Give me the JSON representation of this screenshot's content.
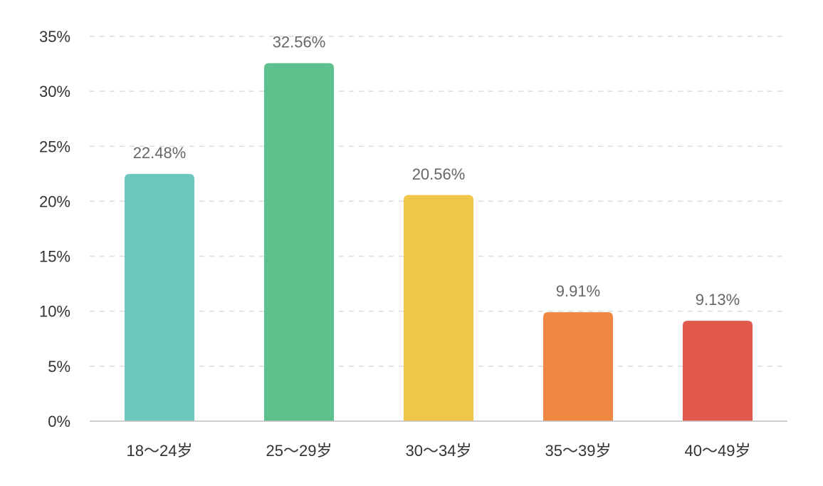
{
  "chart_data": {
    "type": "bar",
    "title": "",
    "xlabel": "",
    "ylabel": "",
    "categories": [
      "18～24岁",
      "25～29岁",
      "30～34岁",
      "35～39岁",
      "40～49岁"
    ],
    "values": [
      22.48,
      32.56,
      20.56,
      9.91,
      9.13
    ],
    "value_labels": [
      "22.48%",
      "32.56%",
      "20.56%",
      "9.91%",
      "9.13%"
    ],
    "colors": [
      "#6cc8be",
      "#5dc18d",
      "#f0c64a",
      "#ef8740",
      "#e0594c"
    ],
    "ylim": [
      0,
      35
    ],
    "y_ticks": [
      0,
      5,
      10,
      15,
      20,
      25,
      30,
      35
    ],
    "y_tick_labels": [
      "0%",
      "5%",
      "10%",
      "15%",
      "20%",
      "25%",
      "30%",
      "35%"
    ],
    "grid": true,
    "grid_style": "dashed",
    "legend": "none"
  }
}
